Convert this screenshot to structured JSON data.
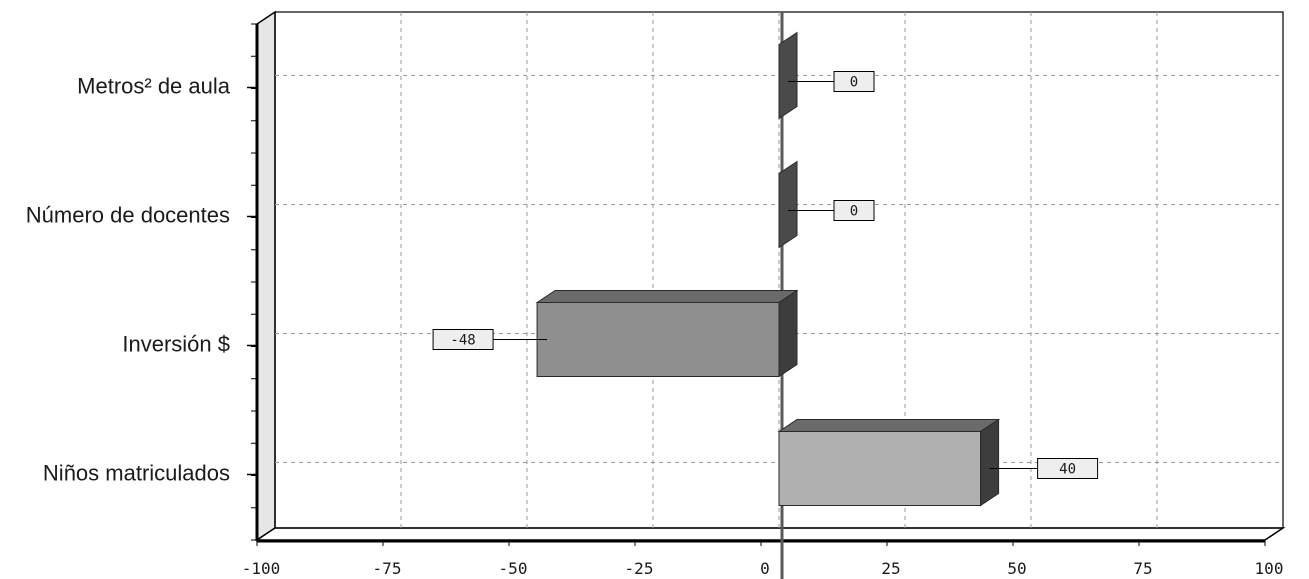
{
  "chart_data": {
    "type": "bar",
    "orientation": "horizontal",
    "title": "",
    "xlabel": "",
    "ylabel": "",
    "categories": [
      "Metros² de aula",
      "Número de docentes",
      "Inversión $",
      "Niños matriculados"
    ],
    "values": [
      0,
      0,
      -48,
      40
    ],
    "data_labels": [
      "0",
      "0",
      "-48",
      "40"
    ],
    "xlim": [
      -100,
      100
    ],
    "x_ticks": [
      -100,
      -75,
      -50,
      -25,
      0,
      25,
      50,
      75,
      100
    ],
    "x_tick_labels": [
      "-100",
      "-75",
      "-50",
      "-25",
      "0",
      "25",
      "50",
      "75",
      "100"
    ],
    "grid": true,
    "legend": "none",
    "colors": {
      "bar_fills": [
        "#4a4a4a",
        "#4a4a4a",
        "#8f8f8f",
        "#b0b0b0"
      ],
      "bar_side": "#3d3d3d",
      "bar_top": "#6a6a6a",
      "bar_stroke": "#2a2a2a",
      "grid": "#9a9a9a",
      "zero_line": "#5a5a5a",
      "label_box": "#eeeeee",
      "text": "#1a1a1a",
      "wall": "#e6e6e6"
    }
  }
}
